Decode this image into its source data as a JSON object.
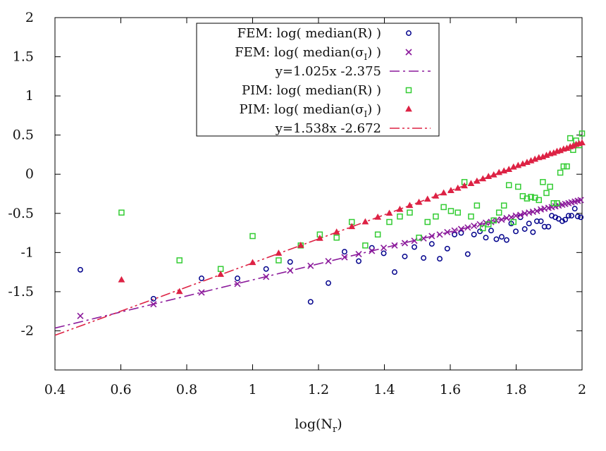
{
  "chart_data": {
    "type": "scatter",
    "title": "",
    "xlabel_main": "log(N",
    "xlabel_sub": "r",
    "xlabel_close": ")",
    "ylabel": "",
    "xlim": [
      0.4,
      2.0
    ],
    "ylim": [
      -2.5,
      2.0
    ],
    "xticks": [
      "0.4",
      "0.6",
      "0.8",
      "1",
      "1.2",
      "1.4",
      "1.6",
      "1.8",
      "2"
    ],
    "yticks": [
      "-2",
      "-1.5",
      "-1",
      "-0.5",
      "0",
      "0.5",
      "1",
      "1.5",
      "2"
    ],
    "xtick_values": [
      0.4,
      0.6,
      0.8,
      1.0,
      1.2,
      1.4,
      1.6,
      1.8,
      2.0
    ],
    "ytick_values": [
      -2,
      -1.5,
      -1,
      -0.5,
      0,
      0.5,
      1,
      1.5,
      2
    ],
    "grid": false,
    "legend_position": "top-center",
    "legend": [
      {
        "label": "FEM: log( median(R) )",
        "marker": "circle",
        "color": "#00008b"
      },
      {
        "label": "FEM: log( median(σ",
        "sub": "I",
        "tail": ") )",
        "marker": "x",
        "color": "#8b1a9b"
      },
      {
        "label": "y=1.025x -2.375",
        "marker": "dashdot",
        "color": "#8b1a9b"
      },
      {
        "label": "PIM: log( median(R) )",
        "marker": "square",
        "color": "#33cc33"
      },
      {
        "label": "PIM: log( median(σ",
        "sub": "I",
        "tail": ") )",
        "marker": "triangle",
        "color": "#dd2244"
      },
      {
        "label": "y=1.538x -2.672",
        "marker": "dashdotdot",
        "color": "#dd2244"
      }
    ],
    "fit_lines": [
      {
        "name": "y=1.025x -2.375",
        "slope": 1.025,
        "intercept": -2.375,
        "color": "#8b1a9b",
        "dash": "14,5,3,5"
      },
      {
        "name": "y=1.538x -2.672",
        "slope": 1.538,
        "intercept": -2.672,
        "color": "#dd2244",
        "dash": "14,4,3,4,3,4"
      }
    ],
    "series": [
      {
        "name": "FEM: log( median(R) )",
        "marker": "circle",
        "color": "#00008b",
        "points": [
          [
            0.477,
            -1.22
          ],
          [
            0.699,
            -1.59
          ],
          [
            0.845,
            -1.33
          ],
          [
            0.954,
            -1.33
          ],
          [
            1.041,
            -1.21
          ],
          [
            1.114,
            -1.12
          ],
          [
            1.176,
            -1.63
          ],
          [
            1.23,
            -1.39
          ],
          [
            1.279,
            -0.99
          ],
          [
            1.322,
            -1.11
          ],
          [
            1.362,
            -0.94
          ],
          [
            1.398,
            -1.01
          ],
          [
            1.431,
            -1.25
          ],
          [
            1.462,
            -1.05
          ],
          [
            1.491,
            -0.93
          ],
          [
            1.519,
            -1.07
          ],
          [
            1.544,
            -0.89
          ],
          [
            1.568,
            -1.08
          ],
          [
            1.591,
            -0.95
          ],
          [
            1.613,
            -0.77
          ],
          [
            1.633,
            -0.75
          ],
          [
            1.653,
            -1.02
          ],
          [
            1.672,
            -0.77
          ],
          [
            1.69,
            -0.73
          ],
          [
            1.708,
            -0.81
          ],
          [
            1.724,
            -0.72
          ],
          [
            1.74,
            -0.83
          ],
          [
            1.756,
            -0.8
          ],
          [
            1.771,
            -0.84
          ],
          [
            1.785,
            -0.63
          ],
          [
            1.799,
            -0.73
          ],
          [
            1.813,
            -0.55
          ],
          [
            1.826,
            -0.7
          ],
          [
            1.839,
            -0.63
          ],
          [
            1.851,
            -0.74
          ],
          [
            1.863,
            -0.6
          ],
          [
            1.875,
            -0.6
          ],
          [
            1.886,
            -0.67
          ],
          [
            1.898,
            -0.67
          ],
          [
            1.908,
            -0.53
          ],
          [
            1.919,
            -0.55
          ],
          [
            1.929,
            -0.57
          ],
          [
            1.94,
            -0.6
          ],
          [
            1.949,
            -0.58
          ],
          [
            1.959,
            -0.53
          ],
          [
            1.968,
            -0.53
          ],
          [
            1.978,
            -0.44
          ],
          [
            1.987,
            -0.54
          ],
          [
            1.996,
            -0.55
          ]
        ]
      },
      {
        "name": "FEM: log( median(σI) )",
        "marker": "x",
        "color": "#8b1a9b",
        "points": [
          [
            0.477,
            -1.81
          ],
          [
            0.699,
            -1.66
          ],
          [
            0.845,
            -1.51
          ],
          [
            0.954,
            -1.4
          ],
          [
            1.041,
            -1.31
          ],
          [
            1.114,
            -1.23
          ],
          [
            1.176,
            -1.17
          ],
          [
            1.23,
            -1.11
          ],
          [
            1.279,
            -1.06
          ],
          [
            1.322,
            -1.02
          ],
          [
            1.362,
            -0.98
          ],
          [
            1.398,
            -0.94
          ],
          [
            1.431,
            -0.91
          ],
          [
            1.462,
            -0.88
          ],
          [
            1.491,
            -0.85
          ],
          [
            1.519,
            -0.82
          ],
          [
            1.544,
            -0.79
          ],
          [
            1.568,
            -0.77
          ],
          [
            1.591,
            -0.74
          ],
          [
            1.613,
            -0.72
          ],
          [
            1.633,
            -0.7
          ],
          [
            1.653,
            -0.68
          ],
          [
            1.672,
            -0.66
          ],
          [
            1.69,
            -0.64
          ],
          [
            1.708,
            -0.62
          ],
          [
            1.724,
            -0.61
          ],
          [
            1.74,
            -0.59
          ],
          [
            1.756,
            -0.58
          ],
          [
            1.771,
            -0.56
          ],
          [
            1.785,
            -0.55
          ],
          [
            1.799,
            -0.53
          ],
          [
            1.813,
            -0.52
          ],
          [
            1.826,
            -0.5
          ],
          [
            1.839,
            -0.49
          ],
          [
            1.851,
            -0.48
          ],
          [
            1.863,
            -0.47
          ],
          [
            1.875,
            -0.45
          ],
          [
            1.886,
            -0.44
          ],
          [
            1.898,
            -0.43
          ],
          [
            1.908,
            -0.42
          ],
          [
            1.919,
            -0.41
          ],
          [
            1.929,
            -0.4
          ],
          [
            1.94,
            -0.39
          ],
          [
            1.949,
            -0.38
          ],
          [
            1.959,
            -0.37
          ],
          [
            1.968,
            -0.36
          ],
          [
            1.978,
            -0.35
          ],
          [
            1.987,
            -0.34
          ],
          [
            1.996,
            -0.33
          ]
        ]
      },
      {
        "name": "PIM: log( median(R) )",
        "marker": "square",
        "color": "#33cc33",
        "points": [
          [
            0.602,
            -0.49
          ],
          [
            0.778,
            -1.1
          ],
          [
            0.903,
            -1.21
          ],
          [
            1.0,
            -0.79
          ],
          [
            1.079,
            -1.1
          ],
          [
            1.146,
            -0.91
          ],
          [
            1.204,
            -0.77
          ],
          [
            1.255,
            -0.81
          ],
          [
            1.301,
            -0.61
          ],
          [
            1.342,
            -0.91
          ],
          [
            1.38,
            -0.77
          ],
          [
            1.415,
            -0.61
          ],
          [
            1.447,
            -0.54
          ],
          [
            1.477,
            -0.49
          ],
          [
            1.505,
            -0.81
          ],
          [
            1.531,
            -0.61
          ],
          [
            1.556,
            -0.54
          ],
          [
            1.58,
            -0.42
          ],
          [
            1.602,
            -0.47
          ],
          [
            1.623,
            -0.49
          ],
          [
            1.643,
            -0.1
          ],
          [
            1.663,
            -0.54
          ],
          [
            1.681,
            -0.4
          ],
          [
            1.699,
            -0.69
          ],
          [
            1.716,
            -0.64
          ],
          [
            1.732,
            -0.59
          ],
          [
            1.748,
            -0.49
          ],
          [
            1.763,
            -0.4
          ],
          [
            1.778,
            -0.14
          ],
          [
            1.792,
            -0.61
          ],
          [
            1.806,
            -0.16
          ],
          [
            1.82,
            -0.28
          ],
          [
            1.833,
            -0.31
          ],
          [
            1.845,
            -0.29
          ],
          [
            1.857,
            -0.3
          ],
          [
            1.869,
            -0.33
          ],
          [
            1.881,
            -0.1
          ],
          [
            1.892,
            -0.24
          ],
          [
            1.903,
            -0.16
          ],
          [
            1.914,
            -0.37
          ],
          [
            1.924,
            -0.37
          ],
          [
            1.934,
            0.02
          ],
          [
            1.944,
            0.1
          ],
          [
            1.954,
            0.1
          ],
          [
            1.964,
            0.46
          ],
          [
            1.973,
            0.31
          ],
          [
            1.982,
            0.43
          ],
          [
            1.991,
            0.37
          ],
          [
            2.0,
            0.52
          ]
        ]
      },
      {
        "name": "PIM: log( median(σI) )",
        "marker": "triangle",
        "color": "#dd2244",
        "points": [
          [
            0.602,
            -1.35
          ],
          [
            0.778,
            -1.5
          ],
          [
            0.903,
            -1.28
          ],
          [
            1.0,
            -1.13
          ],
          [
            1.079,
            -1.01
          ],
          [
            1.146,
            -0.91
          ],
          [
            1.204,
            -0.82
          ],
          [
            1.255,
            -0.74
          ],
          [
            1.301,
            -0.67
          ],
          [
            1.342,
            -0.61
          ],
          [
            1.38,
            -0.55
          ],
          [
            1.415,
            -0.5
          ],
          [
            1.447,
            -0.45
          ],
          [
            1.477,
            -0.4
          ],
          [
            1.505,
            -0.36
          ],
          [
            1.531,
            -0.32
          ],
          [
            1.556,
            -0.28
          ],
          [
            1.58,
            -0.24
          ],
          [
            1.602,
            -0.21
          ],
          [
            1.623,
            -0.18
          ],
          [
            1.643,
            -0.15
          ],
          [
            1.663,
            -0.12
          ],
          [
            1.681,
            -0.09
          ],
          [
            1.699,
            -0.06
          ],
          [
            1.716,
            -0.03
          ],
          [
            1.732,
            -0.01
          ],
          [
            1.748,
            0.02
          ],
          [
            1.763,
            0.04
          ],
          [
            1.778,
            0.06
          ],
          [
            1.792,
            0.09
          ],
          [
            1.806,
            0.11
          ],
          [
            1.82,
            0.13
          ],
          [
            1.833,
            0.15
          ],
          [
            1.845,
            0.17
          ],
          [
            1.857,
            0.19
          ],
          [
            1.869,
            0.21
          ],
          [
            1.881,
            0.22
          ],
          [
            1.892,
            0.24
          ],
          [
            1.903,
            0.26
          ],
          [
            1.914,
            0.27
          ],
          [
            1.924,
            0.29
          ],
          [
            1.934,
            0.3
          ],
          [
            1.944,
            0.32
          ],
          [
            1.954,
            0.33
          ],
          [
            1.964,
            0.35
          ],
          [
            1.973,
            0.36
          ],
          [
            1.982,
            0.38
          ],
          [
            1.991,
            0.39
          ],
          [
            2.0,
            0.4
          ]
        ]
      }
    ]
  }
}
